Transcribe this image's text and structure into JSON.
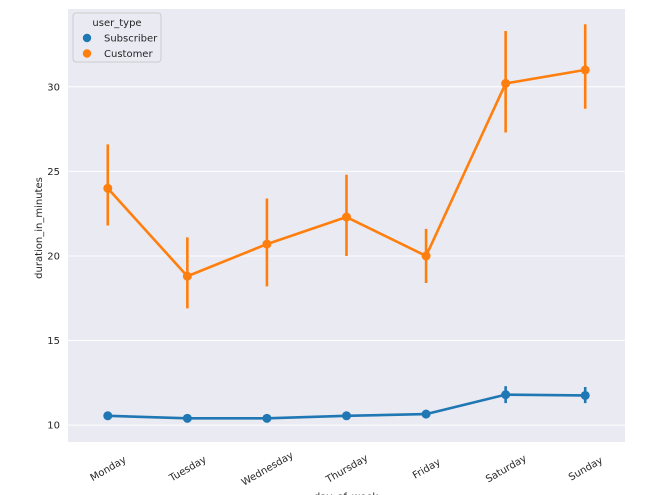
{
  "chart_data": {
    "type": "line",
    "xlabel": "day_of_week",
    "ylabel": "duration_in_minutes",
    "categories": [
      "Monday",
      "Tuesday",
      "Wednesday",
      "Thursday",
      "Friday",
      "Saturday",
      "Sunday"
    ],
    "ylim": [
      9,
      34.6
    ],
    "yticks": [
      10,
      15,
      20,
      25,
      30
    ],
    "grid": true,
    "legend": {
      "title": "user_type",
      "placement": "top-left"
    },
    "series": [
      {
        "name": "Subscriber",
        "color": "#1f77b4",
        "values": [
          10.55,
          10.4,
          10.4,
          10.55,
          10.65,
          11.8,
          11.75
        ],
        "ci_low": [
          10.3,
          10.25,
          10.2,
          10.4,
          10.45,
          11.3,
          11.3
        ],
        "ci_high": [
          10.8,
          10.55,
          10.6,
          10.75,
          10.9,
          12.3,
          12.25
        ]
      },
      {
        "name": "Customer",
        "color": "#ff7f0e",
        "values": [
          24.0,
          18.8,
          20.7,
          22.3,
          20.0,
          30.2,
          31.0
        ],
        "ci_low": [
          21.8,
          16.9,
          18.2,
          20.0,
          18.4,
          27.3,
          28.7
        ],
        "ci_high": [
          26.6,
          21.1,
          23.4,
          24.8,
          21.6,
          33.3,
          33.7
        ]
      }
    ]
  }
}
